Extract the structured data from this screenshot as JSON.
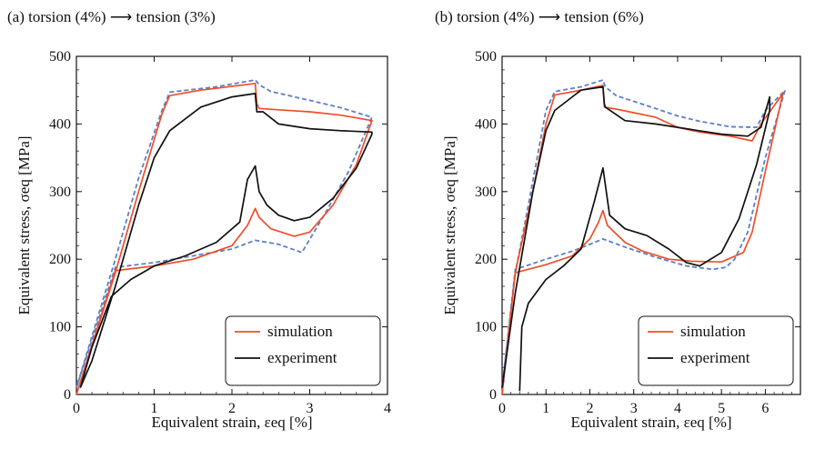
{
  "chart_data": [
    {
      "type": "line",
      "title": "(a) torsion (4%) ⟶ tension (3%)",
      "xlabel": "Equivalent strain, εeq [%]",
      "ylabel": "Equivalent stress, σeq [MPa]",
      "xlim": [
        0,
        4
      ],
      "ylim": [
        0,
        500
      ],
      "xticks": [
        "0",
        "1",
        "2",
        "3",
        "4"
      ],
      "yticks": [
        "0",
        "100",
        "200",
        "300",
        "400",
        "500"
      ],
      "legend_position": "bottom-right",
      "series": [
        {
          "name": "simulation",
          "color": "#f04e2a",
          "style": "solid",
          "points": [
            [
              0,
              0
            ],
            [
              0.5,
              183
            ],
            [
              1.0,
              190
            ],
            [
              1.5,
              200
            ],
            [
              2.0,
              220
            ],
            [
              2.2,
              250
            ],
            [
              2.3,
              275
            ],
            [
              2.35,
              262
            ],
            [
              2.5,
              245
            ],
            [
              2.8,
              234
            ],
            [
              3.0,
              240
            ],
            [
              3.3,
              280
            ],
            [
              3.6,
              340
            ],
            [
              3.8,
              405
            ],
            [
              3.8,
              405
            ],
            [
              3.4,
              413
            ],
            [
              3.0,
              418
            ],
            [
              2.6,
              421
            ],
            [
              2.35,
              423
            ],
            [
              2.32,
              430
            ],
            [
              2.3,
              460
            ],
            [
              1.6,
              450
            ],
            [
              1.2,
              442
            ],
            [
              1.1,
              415
            ],
            [
              0.8,
              300
            ],
            [
              0.5,
              180
            ],
            [
              0,
              0
            ]
          ]
        },
        {
          "name": "experiment",
          "color": "#111111",
          "style": "solid",
          "points": [
            [
              0.05,
              10
            ],
            [
              0.2,
              70
            ],
            [
              0.45,
              145
            ],
            [
              0.7,
              170
            ],
            [
              1.0,
              190
            ],
            [
              1.4,
              205
            ],
            [
              1.8,
              225
            ],
            [
              2.1,
              255
            ],
            [
              2.2,
              318
            ],
            [
              2.3,
              338
            ],
            [
              2.35,
              300
            ],
            [
              2.45,
              280
            ],
            [
              2.6,
              265
            ],
            [
              2.8,
              257
            ],
            [
              3.0,
              262
            ],
            [
              3.3,
              290
            ],
            [
              3.6,
              335
            ],
            [
              3.8,
              385
            ],
            [
              3.8,
              388
            ],
            [
              3.4,
              390
            ],
            [
              3.0,
              393
            ],
            [
              2.6,
              400
            ],
            [
              2.4,
              418
            ],
            [
              2.32,
              418
            ],
            [
              2.3,
              445
            ],
            [
              2.0,
              440
            ],
            [
              1.6,
              425
            ],
            [
              1.2,
              390
            ],
            [
              1.0,
              350
            ],
            [
              0.8,
              280
            ],
            [
              0.5,
              160
            ],
            [
              0.2,
              50
            ],
            [
              0.05,
              10
            ]
          ]
        },
        {
          "name": "",
          "color": "#5b7fc6",
          "style": "dashed",
          "points": [
            [
              0,
              10
            ],
            [
              0.5,
              188
            ],
            [
              1.0,
              195
            ],
            [
              1.5,
              205
            ],
            [
              2.0,
              215
            ],
            [
              2.3,
              228
            ],
            [
              2.6,
              222
            ],
            [
              2.9,
              210
            ],
            [
              3.2,
              268
            ],
            [
              3.5,
              330
            ],
            [
              3.8,
              410
            ],
            [
              3.8,
              410
            ],
            [
              3.4,
              424
            ],
            [
              3.0,
              435
            ],
            [
              2.5,
              448
            ],
            [
              2.35,
              458
            ],
            [
              2.3,
              465
            ],
            [
              1.8,
              455
            ],
            [
              1.2,
              447
            ],
            [
              1.1,
              420
            ],
            [
              0.8,
              320
            ],
            [
              0.5,
              200
            ],
            [
              0,
              10
            ]
          ]
        }
      ]
    },
    {
      "type": "line",
      "title": "(b) torsion (4%) ⟶ tension (6%)",
      "xlabel": "Equivalent strain, εeq [%]",
      "ylabel": "Equivalent stress, σeq [MPa]",
      "xlim": [
        0,
        6.8
      ],
      "ylim": [
        0,
        500
      ],
      "xticks": [
        "0",
        "1",
        "2",
        "3",
        "4",
        "5",
        "6"
      ],
      "yticks": [
        "0",
        "100",
        "200",
        "300",
        "400",
        "500"
      ],
      "legend_position": "bottom-right",
      "series": [
        {
          "name": "simulation",
          "color": "#f04e2a",
          "style": "solid",
          "points": [
            [
              0,
              0
            ],
            [
              0.3,
              180
            ],
            [
              1.0,
              192
            ],
            [
              1.6,
              205
            ],
            [
              2.0,
              230
            ],
            [
              2.2,
              255
            ],
            [
              2.3,
              272
            ],
            [
              2.4,
              250
            ],
            [
              2.8,
              225
            ],
            [
              3.2,
              212
            ],
            [
              3.8,
              200
            ],
            [
              4.3,
              197
            ],
            [
              5.0,
              196
            ],
            [
              5.5,
              210
            ],
            [
              5.7,
              240
            ],
            [
              6.0,
              330
            ],
            [
              6.4,
              445
            ],
            [
              6.4,
              445
            ],
            [
              5.9,
              400
            ],
            [
              5.7,
              375
            ],
            [
              5.2,
              382
            ],
            [
              4.5,
              388
            ],
            [
              4.0,
              395
            ],
            [
              3.5,
              410
            ],
            [
              2.6,
              422
            ],
            [
              2.33,
              425
            ],
            [
              2.3,
              457
            ],
            [
              1.8,
              450
            ],
            [
              1.2,
              443
            ],
            [
              1.0,
              400
            ],
            [
              0.7,
              300
            ],
            [
              0.3,
              180
            ],
            [
              0,
              0
            ]
          ]
        },
        {
          "name": "experiment",
          "color": "#111111",
          "style": "solid",
          "points": [
            [
              0.4,
              5
            ],
            [
              0.45,
              100
            ],
            [
              0.6,
              135
            ],
            [
              1.0,
              170
            ],
            [
              1.4,
              190
            ],
            [
              1.8,
              215
            ],
            [
              2.1,
              285
            ],
            [
              2.3,
              335
            ],
            [
              2.45,
              265
            ],
            [
              2.8,
              245
            ],
            [
              3.3,
              235
            ],
            [
              3.8,
              215
            ],
            [
              4.2,
              195
            ],
            [
              4.5,
              190
            ],
            [
              5.0,
              210
            ],
            [
              5.4,
              260
            ],
            [
              5.8,
              340
            ],
            [
              6.1,
              420
            ],
            [
              6.1,
              440
            ],
            [
              5.9,
              395
            ],
            [
              5.6,
              382
            ],
            [
              5.0,
              385
            ],
            [
              4.3,
              392
            ],
            [
              3.5,
              400
            ],
            [
              2.8,
              405
            ],
            [
              2.35,
              425
            ],
            [
              2.33,
              430
            ],
            [
              2.3,
              455
            ],
            [
              1.8,
              450
            ],
            [
              1.2,
              420
            ],
            [
              1.0,
              390
            ],
            [
              0.7,
              300
            ],
            [
              0.3,
              150
            ],
            [
              0,
              10
            ]
          ]
        },
        {
          "name": "",
          "color": "#5b7fc6",
          "style": "dashed",
          "points": [
            [
              0,
              10
            ],
            [
              0.3,
              185
            ],
            [
              1.0,
              200
            ],
            [
              1.6,
              212
            ],
            [
              2.0,
              222
            ],
            [
              2.3,
              230
            ],
            [
              2.8,
              218
            ],
            [
              3.5,
              203
            ],
            [
              4.2,
              190
            ],
            [
              4.8,
              185
            ],
            [
              5.1,
              188
            ],
            [
              5.3,
              200
            ],
            [
              5.6,
              240
            ],
            [
              6.0,
              350
            ],
            [
              6.45,
              450
            ],
            [
              6.45,
              450
            ],
            [
              6.0,
              420
            ],
            [
              5.8,
              395
            ],
            [
              5.2,
              396
            ],
            [
              4.5,
              404
            ],
            [
              4.0,
              412
            ],
            [
              3.4,
              425
            ],
            [
              2.6,
              442
            ],
            [
              2.35,
              455
            ],
            [
              2.3,
              465
            ],
            [
              1.8,
              455
            ],
            [
              1.2,
              448
            ],
            [
              1.0,
              420
            ],
            [
              0.6,
              280
            ],
            [
              0.3,
              180
            ],
            [
              0,
              10
            ]
          ]
        }
      ]
    }
  ]
}
